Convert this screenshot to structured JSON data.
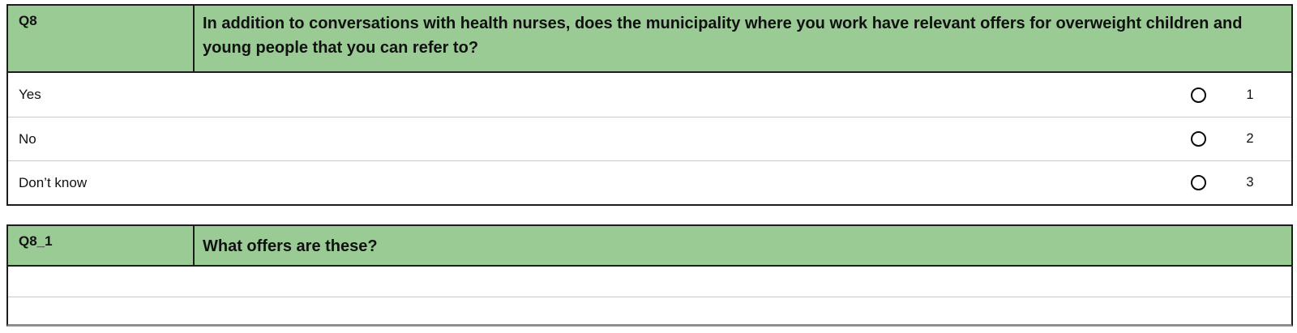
{
  "q8": {
    "id_label": "Q8",
    "question": "In addition to conversations with health nurses, does the municipality where you work have relevant offers for overweight children and young people that you can refer to?",
    "options": [
      {
        "label": "Yes",
        "code": "1"
      },
      {
        "label": "No",
        "code": "2"
      },
      {
        "label": "Don’t know",
        "code": "3"
      }
    ]
  },
  "q8_1": {
    "id_label": "Q8_1",
    "question": "What offers are these?",
    "answer_value": "",
    "answer_rows": 2
  },
  "colors": {
    "header_green": "#9ACB95",
    "border_dark": "#1d1d1d",
    "row_separator": "#c9c9c9",
    "bottom_border_gray": "#8e8e8e"
  }
}
